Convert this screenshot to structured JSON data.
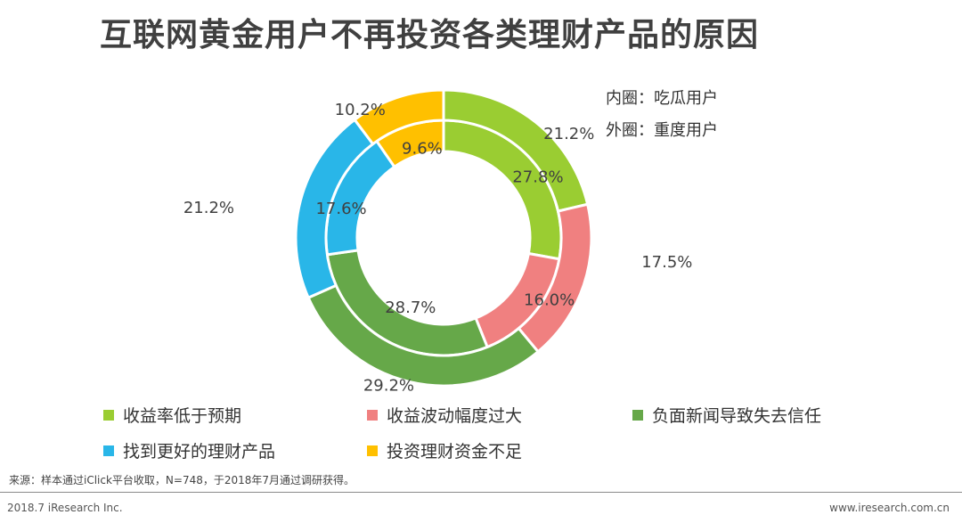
{
  "chart_data": {
    "type": "pie",
    "title": "互联网黄金用户不再投资各类理财产品的原因",
    "ring_notes": {
      "inner": "内圈：吃瓜用户",
      "outer": "外圈：重度用户"
    },
    "categories": [
      "收益率低于预期",
      "收益波动幅度过大",
      "负面新闻导致失去信任",
      "找到更好的理财产品",
      "投资理财资金不足"
    ],
    "colors": [
      "#9ACD32",
      "#F08080",
      "#66A849",
      "#29B6E8",
      "#FFC000"
    ],
    "series": [
      {
        "ring": "inner",
        "values": [
          27.8,
          16.0,
          28.7,
          17.6,
          9.6
        ],
        "labels": [
          "27.8%",
          "16.0%",
          "28.7%",
          "17.6%",
          "9.6%"
        ]
      },
      {
        "ring": "outer",
        "values": [
          21.2,
          17.5,
          29.2,
          21.2,
          10.2
        ],
        "labels": [
          "21.2%",
          "17.5%",
          "29.2%",
          "21.2%",
          "10.2%"
        ]
      }
    ],
    "legend_position": "bottom"
  },
  "footer": {
    "source": "来源：样本通过iClick平台收取，N=748，于2018年7月通过调研获得。",
    "copyright": "2018.7 iResearch Inc.",
    "url": "www.iresearch.com.cn"
  }
}
